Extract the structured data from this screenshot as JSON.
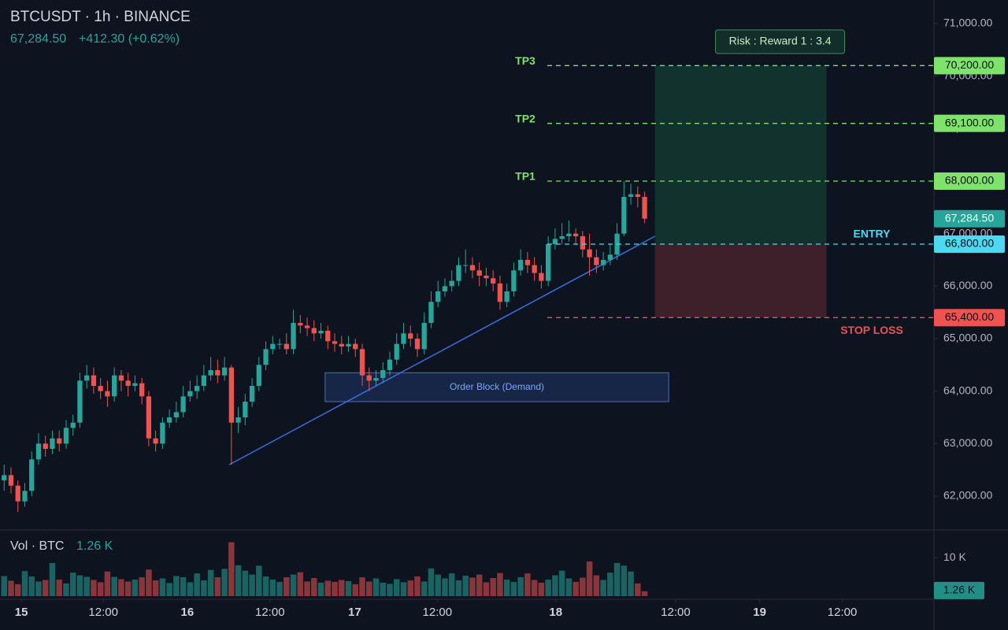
{
  "header": {
    "symbol": "BTCUSDT · 1h · BINANCE",
    "last_price": "67,284.50",
    "change": "+412.30 (+0.62%)"
  },
  "chart_data": {
    "type": "candlestick",
    "open": [
      62300,
      62400,
      62200,
      61900,
      62100,
      62700,
      63000,
      62900,
      63100,
      63000,
      63300,
      63400,
      64200,
      64300,
      64100,
      64000,
      63900,
      64300,
      64200,
      64100,
      64150,
      63900,
      63100,
      63000,
      63400,
      63500,
      63600,
      63900,
      64000,
      64100,
      64300,
      64400,
      64300,
      64450,
      63400,
      63500,
      63800,
      64100,
      64500,
      64800,
      64900,
      64900,
      64800,
      65300,
      65250,
      65200,
      65100,
      65150,
      64950,
      64900,
      64850,
      64900,
      64800,
      64300,
      64200,
      64250,
      64400,
      64600,
      64900,
      65100,
      65000,
      64800,
      65300,
      65700,
      65900,
      66000,
      66100,
      66400,
      66400,
      66300,
      66200,
      66150,
      66050,
      65700,
      65900,
      66300,
      66500,
      66400,
      66250,
      66100,
      66800,
      66900,
      66950,
      67000,
      66950,
      66700,
      66550,
      66400,
      66500,
      66600,
      67000,
      67700,
      67750,
      67700
    ],
    "high": [
      62600,
      62550,
      62300,
      62250,
      62850,
      63200,
      63150,
      63250,
      63250,
      63450,
      63550,
      64350,
      64500,
      64450,
      64250,
      64200,
      64450,
      64400,
      64350,
      64300,
      64250,
      64000,
      63250,
      63500,
      63650,
      63800,
      64100,
      64200,
      64300,
      64500,
      64650,
      64600,
      64650,
      64500,
      63700,
      63950,
      64250,
      64650,
      64950,
      65050,
      65000,
      65100,
      65550,
      65450,
      65400,
      65350,
      65300,
      65250,
      65100,
      65050,
      65050,
      65000,
      64900,
      64450,
      64400,
      64550,
      64750,
      65100,
      65300,
      65250,
      65100,
      65500,
      65900,
      66100,
      66150,
      66300,
      66550,
      66700,
      66550,
      66450,
      66350,
      66300,
      66200,
      66050,
      66450,
      66700,
      66650,
      66550,
      66400,
      66950,
      67100,
      67200,
      67250,
      67100,
      67050,
      67000,
      66700,
      66650,
      66800,
      67200,
      68000,
      67950,
      67900,
      67800
    ],
    "low": [
      62100,
      62050,
      61700,
      61800,
      62000,
      62600,
      62750,
      62800,
      62850,
      62900,
      63150,
      63300,
      64050,
      63950,
      63850,
      63700,
      63800,
      64000,
      63900,
      64000,
      63750,
      62950,
      62850,
      62900,
      63300,
      63400,
      63500,
      63800,
      63850,
      64000,
      64200,
      64150,
      64200,
      62600,
      63200,
      63350,
      63700,
      64000,
      64400,
      64700,
      64800,
      64700,
      64700,
      65100,
      65050,
      64950,
      65000,
      64800,
      64750,
      64700,
      64750,
      64650,
      64100,
      64000,
      64100,
      64150,
      64300,
      64500,
      64800,
      64850,
      64650,
      64700,
      65200,
      65600,
      65800,
      65900,
      66000,
      66250,
      66150,
      66000,
      66000,
      65900,
      65550,
      65600,
      65800,
      66200,
      66250,
      66100,
      65950,
      66000,
      66700,
      66800,
      66850,
      66800,
      66550,
      66200,
      66250,
      66300,
      66400,
      66500,
      66950,
      67550,
      67500,
      67200
    ],
    "close": [
      62400,
      62200,
      61900,
      62100,
      62700,
      63000,
      62900,
      63100,
      63000,
      63300,
      63400,
      64200,
      64300,
      64100,
      64000,
      63900,
      64300,
      64200,
      64100,
      64150,
      63900,
      63100,
      63000,
      63400,
      63500,
      63600,
      63900,
      64000,
      64100,
      64300,
      64400,
      64300,
      64450,
      63400,
      63500,
      63800,
      64100,
      64500,
      64800,
      64900,
      64900,
      64800,
      65300,
      65250,
      65200,
      65100,
      65150,
      64950,
      64900,
      64850,
      64900,
      64800,
      64300,
      64200,
      64250,
      64400,
      64600,
      64900,
      65100,
      65000,
      64800,
      65300,
      65700,
      65900,
      66000,
      66100,
      66400,
      66400,
      66300,
      66200,
      66150,
      66050,
      65700,
      65900,
      66300,
      66500,
      66400,
      66250,
      66100,
      66800,
      66900,
      66950,
      67000,
      66950,
      66700,
      66550,
      66400,
      66500,
      66600,
      67000,
      67700,
      67750,
      67700,
      67284.5
    ],
    "up_color": "#26a69a",
    "down_color": "#ef5350",
    "xlim": [
      -0.6,
      134.9
    ],
    "xticks": [
      {
        "value": 2.5,
        "label": "15"
      },
      {
        "value": 14.4,
        "label": "12:00"
      },
      {
        "value": 26.6,
        "label": "16"
      },
      {
        "value": 38.6,
        "label": "12:00"
      },
      {
        "value": 50.9,
        "label": "17"
      },
      {
        "value": 62.9,
        "label": "12:00"
      },
      {
        "value": 80.1,
        "label": "18"
      },
      {
        "value": 97.5,
        "label": "12:00"
      },
      {
        "value": 109.7,
        "label": "19"
      },
      {
        "value": 121.7,
        "label": "12:00"
      }
    ],
    "ylim": [
      61550,
      71450
    ],
    "yticks": [
      {
        "value": 62000,
        "label": "62,000.00"
      },
      {
        "value": 63000,
        "label": "63,000.00"
      },
      {
        "value": 64000,
        "label": "64,000.00"
      },
      {
        "value": 65000,
        "label": "65,000.00"
      },
      {
        "value": 66000,
        "label": "66,000.00"
      },
      {
        "value": 67000,
        "label": "67,000.00"
      },
      {
        "value": 68000,
        "label": "68,000.00"
      },
      {
        "value": 69000,
        "label": "69,000.00"
      },
      {
        "value": 70000,
        "label": "70,000.00"
      },
      {
        "value": 71000,
        "label": "71,000.00"
      }
    ],
    "last": {
      "value": 67284.5,
      "label": "67,284.50"
    },
    "levels": [
      {
        "name": "TP3",
        "value": 70200,
        "label": "70,200.00",
        "color": "#7ee36a"
      },
      {
        "name": "TP2",
        "value": 69100,
        "label": "69,100.00",
        "color": "#7ee36a"
      },
      {
        "name": "TP1",
        "value": 68000,
        "label": "68,000.00",
        "color": "#7ee36a"
      },
      {
        "name": "ENTRY",
        "value": 66800,
        "label": "66,800.00",
        "color": "#4dd9f0"
      },
      {
        "name": "STOP LOSS",
        "value": 65400,
        "label": "65,400.00",
        "color": "#ef5350"
      }
    ],
    "position": {
      "x": [
        94.5,
        119.4
      ],
      "label": "Risk : Reward 1 : 3.4"
    },
    "order_block": {
      "label": "Order Block (Demand)",
      "x": [
        46.6,
        96.5
      ],
      "y": [
        63800,
        64350
      ]
    },
    "trendline": {
      "x": [
        32.7,
        94.5
      ],
      "y": [
        62600,
        66950
      ],
      "color": "#3b6fe0"
    },
    "volume": {
      "title": "Vol · BTC",
      "values": [
        5200,
        4000,
        3100,
        6500,
        5100,
        3800,
        4200,
        8600,
        4300,
        3300,
        6100,
        5400,
        5000,
        4200,
        3600,
        6400,
        5000,
        4400,
        3800,
        4300,
        4900,
        6900,
        4100,
        4600,
        3400,
        5200,
        4900,
        3600,
        5900,
        4100,
        6800,
        4900,
        7100,
        14000,
        8000,
        6600,
        5600,
        7900,
        5100,
        4300,
        3700,
        4900,
        5600,
        6200,
        3800,
        4700,
        3500,
        4000,
        3700,
        4200,
        3900,
        3100,
        4900,
        3800,
        4600,
        3500,
        3200,
        4400,
        3600,
        4100,
        5100,
        3800,
        7200,
        5600,
        4600,
        5900,
        4100,
        5300,
        4800,
        5600,
        3600,
        4700,
        6000,
        4300,
        3700,
        4900,
        5900,
        4200,
        3500,
        4300,
        5400,
        6600,
        4600,
        3700,
        4800,
        9000,
        5400,
        4200,
        6100,
        8600,
        7900,
        6400,
        3300,
        1260
      ],
      "ylim": [
        0,
        14100
      ],
      "yticks": [
        {
          "value": 10000,
          "label": "10 K"
        }
      ],
      "last": {
        "value": 1260,
        "label": "1.26 K"
      }
    }
  }
}
